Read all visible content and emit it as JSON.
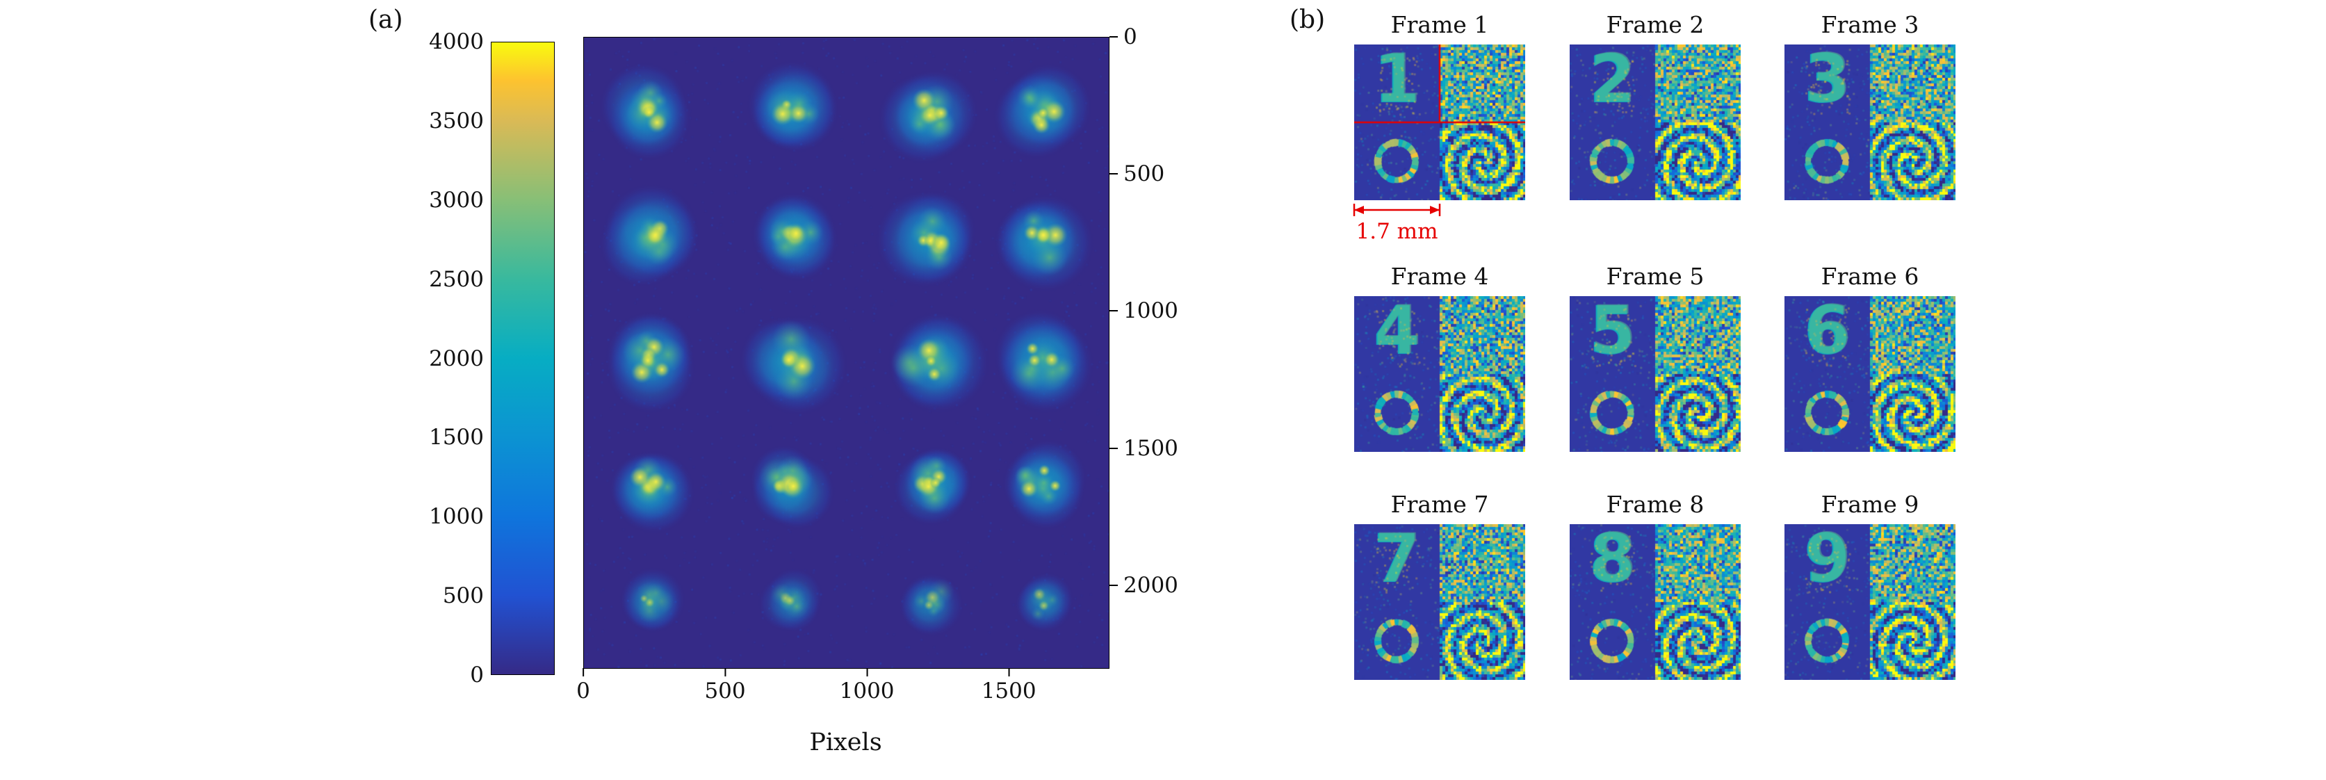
{
  "figure": {
    "panel_a": {
      "label": "(a)",
      "xlabel": "Pixels",
      "x_ticks": [
        0,
        500,
        1000,
        1500
      ],
      "x_range": [
        0,
        1850
      ],
      "y_ticks_right": [
        0,
        500,
        1000,
        1500,
        2000
      ],
      "y_range": [
        0,
        2300
      ],
      "background_color": "#352a87",
      "grid": {
        "rows": 5,
        "cols": 4
      },
      "colorbar": {
        "min": 0,
        "max": 4000,
        "ticks": [
          0,
          500,
          1000,
          1500,
          2000,
          2500,
          3000,
          3500,
          4000
        ],
        "colormap": "parula",
        "stops": [
          [
            0.0,
            "#352a87"
          ],
          [
            0.125,
            "#2152d2"
          ],
          [
            0.25,
            "#0f75dc"
          ],
          [
            0.375,
            "#0c93d2"
          ],
          [
            0.5,
            "#07adc3"
          ],
          [
            0.625,
            "#38b99e"
          ],
          [
            0.75,
            "#87bf77"
          ],
          [
            0.875,
            "#d9ba56"
          ],
          [
            0.94,
            "#fdc32f"
          ],
          [
            1.0,
            "#f9fb0e"
          ]
        ]
      }
    },
    "panel_b": {
      "label": "(b)",
      "frames": [
        {
          "title": "Frame 1",
          "digit": "1"
        },
        {
          "title": "Frame 2",
          "digit": "2"
        },
        {
          "title": "Frame 3",
          "digit": "3"
        },
        {
          "title": "Frame 4",
          "digit": "4"
        },
        {
          "title": "Frame 5",
          "digit": "5"
        },
        {
          "title": "Frame 6",
          "digit": "6"
        },
        {
          "title": "Frame 7",
          "digit": "7"
        },
        {
          "title": "Frame 8",
          "digit": "8"
        },
        {
          "title": "Frame 9",
          "digit": "9"
        }
      ],
      "scale_annotation": {
        "label": "1.7 mm",
        "color": "#e60000"
      }
    }
  },
  "chart_data": [
    {
      "type": "heatmap",
      "panel": "(a)",
      "title": "",
      "xlabel": "Pixels",
      "x_ticks": [
        0,
        500,
        1000,
        1500
      ],
      "x_range": [
        0,
        1850
      ],
      "y_ticks": [
        0,
        500,
        1000,
        1500,
        2000
      ],
      "y_range": [
        0,
        2300
      ],
      "y_axis_side": "right",
      "y_direction": "down",
      "colorbar_position": "left",
      "colorbar_range": [
        0,
        4000
      ],
      "colorbar_ticks": [
        0,
        500,
        1000,
        1500,
        2000,
        2500,
        3000,
        3500,
        4000
      ],
      "colormap": "parula",
      "grid": "off",
      "content": "5x4 array of bright speckled intensity spots (digit-shaped beam modes) on a uniform dark-blue background; bottom row spots are weaker",
      "spot_grid": {
        "rows": 5,
        "cols": 4
      }
    },
    {
      "type": "heatmap",
      "panel": "(b)",
      "frames": [
        "Frame 1",
        "Frame 2",
        "Frame 3",
        "Frame 4",
        "Frame 5",
        "Frame 6",
        "Frame 7",
        "Frame 8",
        "Frame 9"
      ],
      "digits": [
        "1",
        "2",
        "3",
        "4",
        "5",
        "6",
        "7",
        "8",
        "9"
      ],
      "quadrants": [
        "top-left: digit amplitude pattern",
        "top-right: random speckle phase pattern",
        "bottom-left: ring (donut) mode",
        "bottom-right: spiral fringe phase pattern"
      ],
      "scale_bar": {
        "label": "1.7 mm",
        "applies_to": "Frame 1 half-width",
        "color": "#e60000"
      }
    }
  ]
}
